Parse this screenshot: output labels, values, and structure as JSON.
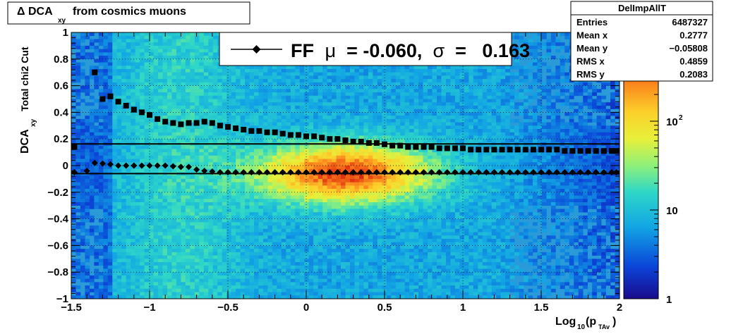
{
  "title": {
    "delta": "Δ",
    "main": "DCA",
    "sub": "xy",
    "rest": "from cosmics muons"
  },
  "chart_data": {
    "type": "heatmap",
    "subtitle": "Total chi2 Cut",
    "xlabel": {
      "pre": "Log",
      "sub1": "10",
      "mid": "(p",
      "sub2": "TAv",
      "post": ")"
    },
    "ylabel": {
      "main": "DCA",
      "sub": "xy"
    },
    "xlim": [
      -1.5,
      2
    ],
    "ylim": [
      -1,
      1
    ],
    "grid": true,
    "x_ticks": [
      {
        "v": -1.5,
        "label": "−1.5"
      },
      {
        "v": -1,
        "label": "−1"
      },
      {
        "v": -0.5,
        "label": "−0.5"
      },
      {
        "v": 0,
        "label": "0"
      },
      {
        "v": 0.5,
        "label": "0.5"
      },
      {
        "v": 1,
        "label": "1"
      },
      {
        "v": 1.5,
        "label": "1.5"
      },
      {
        "v": 2,
        "label": "2"
      }
    ],
    "y_ticks": [
      {
        "v": -1,
        "label": "−1"
      },
      {
        "v": -0.8,
        "label": "−0.8"
      },
      {
        "v": -0.6,
        "label": "−0.6"
      },
      {
        "v": -0.4,
        "label": "−0.4"
      },
      {
        "v": -0.2,
        "label": "−0.2"
      },
      {
        "v": 0,
        "label": "0"
      },
      {
        "v": 0.2,
        "label": "0.2"
      },
      {
        "v": 0.4,
        "label": "0.4"
      },
      {
        "v": 0.6,
        "label": "0.6"
      },
      {
        "v": 0.8,
        "label": "0.8"
      },
      {
        "v": 1,
        "label": "1"
      }
    ],
    "colorbar": {
      "scale": "log",
      "range": [
        1,
        1000
      ],
      "labels": [
        {
          "v": 1,
          "label": "1",
          "sup": ""
        },
        {
          "v": 10,
          "label": "10",
          "sup": ""
        },
        {
          "v": 100,
          "label": "10",
          "sup": "2"
        }
      ]
    },
    "fit_lines": {
      "mean": -0.06,
      "upper": 0.163
    },
    "legend": {
      "label": "FF",
      "mu_symbol": "μ",
      "mu_text": " = -0.060, ",
      "sigma_symbol": "σ",
      "sigma_text": " =   0.163",
      "placement": "top-center"
    },
    "stats": {
      "title": "DelImpAllT",
      "rows": [
        {
          "label": "Entries",
          "value": "6487327"
        },
        {
          "label": "Mean x",
          "value": "0.2777"
        },
        {
          "label": "Mean y",
          "value": "−0.05808"
        },
        {
          "label": "RMS x",
          "value": "0.4859"
        },
        {
          "label": "RMS y",
          "value": "0.2083"
        }
      ]
    },
    "series": [
      {
        "marker": "diamond",
        "x": [
          -1.48,
          -1.4,
          -1.35,
          -1.3,
          -1.25,
          -1.2,
          -1.15,
          -1.1,
          -1.05,
          -1.0,
          -0.95,
          -0.9,
          -0.85,
          -0.8,
          -0.75,
          -0.7,
          -0.65,
          -0.6,
          -0.55,
          -0.5,
          -0.45,
          -0.4,
          -0.35,
          -0.3,
          -0.25,
          -0.2,
          -0.15,
          -0.1,
          -0.05,
          0.0,
          0.05,
          0.1,
          0.15,
          0.2,
          0.25,
          0.3,
          0.35,
          0.4,
          0.45,
          0.5,
          0.55,
          0.6,
          0.65,
          0.7,
          0.75,
          0.8,
          0.85,
          0.9,
          0.95,
          1.0,
          1.05,
          1.1,
          1.15,
          1.2,
          1.25,
          1.3,
          1.35,
          1.4,
          1.45,
          1.5,
          1.55,
          1.6,
          1.65,
          1.7,
          1.75,
          1.8,
          1.85,
          1.9,
          1.95,
          1.98
        ],
        "y": [
          -0.05,
          -0.04,
          0.02,
          0.015,
          0.01,
          0.0,
          0.0,
          0.0,
          0.0,
          0.0,
          0.0,
          0.0,
          -0.005,
          -0.01,
          -0.01,
          -0.03,
          -0.04,
          -0.045,
          -0.05,
          -0.05,
          -0.05,
          -0.05,
          -0.05,
          -0.05,
          -0.05,
          -0.05,
          -0.05,
          -0.05,
          -0.05,
          -0.05,
          -0.05,
          -0.05,
          -0.05,
          -0.05,
          -0.05,
          -0.05,
          -0.05,
          -0.05,
          -0.05,
          -0.05,
          -0.05,
          -0.05,
          -0.05,
          -0.05,
          -0.05,
          -0.05,
          -0.05,
          -0.05,
          -0.05,
          -0.05,
          -0.05,
          -0.05,
          -0.05,
          -0.05,
          -0.05,
          -0.05,
          -0.05,
          -0.05,
          -0.05,
          -0.05,
          -0.05,
          -0.05,
          -0.05,
          -0.05,
          -0.05,
          -0.05,
          -0.05,
          -0.05,
          -0.05,
          -0.05
        ]
      },
      {
        "marker": "square",
        "x": [
          -1.48,
          -1.35,
          -1.3,
          -1.25,
          -1.2,
          -1.15,
          -1.1,
          -1.05,
          -1.0,
          -0.95,
          -0.9,
          -0.85,
          -0.8,
          -0.75,
          -0.7,
          -0.65,
          -0.6,
          -0.55,
          -0.5,
          -0.45,
          -0.4,
          -0.35,
          -0.3,
          -0.25,
          -0.2,
          -0.15,
          -0.1,
          -0.05,
          0.0,
          0.05,
          0.1,
          0.15,
          0.2,
          0.25,
          0.3,
          0.35,
          0.4,
          0.45,
          0.5,
          0.55,
          0.6,
          0.65,
          0.7,
          0.75,
          0.8,
          0.85,
          0.9,
          0.95,
          1.0,
          1.05,
          1.1,
          1.15,
          1.2,
          1.25,
          1.3,
          1.35,
          1.4,
          1.45,
          1.5,
          1.55,
          1.6,
          1.65,
          1.7,
          1.75,
          1.8,
          1.85,
          1.9,
          1.95,
          1.98
        ],
        "y": [
          0.14,
          0.7,
          0.5,
          0.52,
          0.48,
          0.45,
          0.42,
          0.4,
          0.38,
          0.35,
          0.33,
          0.32,
          0.31,
          0.32,
          0.32,
          0.33,
          0.32,
          0.3,
          0.29,
          0.28,
          0.27,
          0.26,
          0.26,
          0.25,
          0.25,
          0.24,
          0.23,
          0.23,
          0.22,
          0.22,
          0.21,
          0.2,
          0.2,
          0.19,
          0.18,
          0.18,
          0.17,
          0.17,
          0.16,
          0.15,
          0.15,
          0.14,
          0.14,
          0.14,
          0.14,
          0.13,
          0.13,
          0.13,
          0.13,
          0.12,
          0.12,
          0.12,
          0.12,
          0.12,
          0.12,
          0.12,
          0.12,
          0.12,
          0.12,
          0.12,
          0.12,
          0.11,
          0.11,
          0.11,
          0.11,
          0.11,
          0.11,
          0.11,
          0.11
        ]
      }
    ]
  }
}
